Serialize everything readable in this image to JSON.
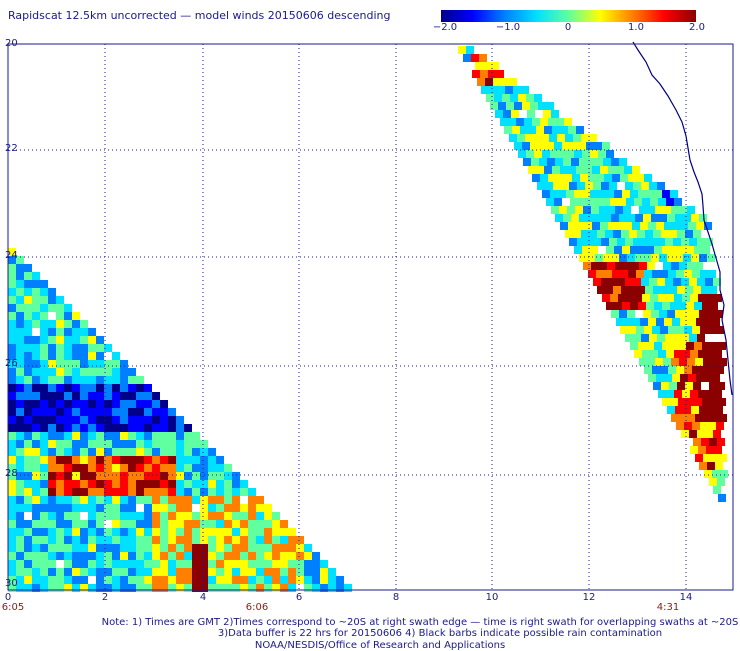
{
  "title": "Rapidscat 12.5km uncorrected — model winds 20150606 descending",
  "colorbar": {
    "ticks": [
      "−2.0",
      "−1.0",
      "0",
      "1.0",
      "2.0"
    ],
    "colors": [
      "#00008b",
      "#0000ff",
      "#0080ff",
      "#00e0ff",
      "#60ffa0",
      "#ffff00",
      "#ff8000",
      "#ff0000",
      "#8b0000"
    ]
  },
  "map": {
    "y_labels": [
      "20",
      "22",
      "24",
      "26",
      "28",
      "30"
    ],
    "x_labels": [
      "0",
      "2",
      "4",
      "6",
      "8",
      "10",
      "12",
      "14"
    ],
    "time_labels": [
      "6:05",
      "6:06",
      "4:31"
    ],
    "coastline_color": "#000080",
    "grid_color": "#1a1a8c"
  },
  "notes": {
    "line1": "Note: 1) Times are GMT 2)Times correspond to ~20S at right swath edge — time is right swath for overlapping swaths at ~20S",
    "line2": "3)Data buffer is 22 hrs for 20150606 4) Black barbs indicate possible rain contamination",
    "line3": "NOAA/NESDIS/Office of Research and Applications"
  }
}
